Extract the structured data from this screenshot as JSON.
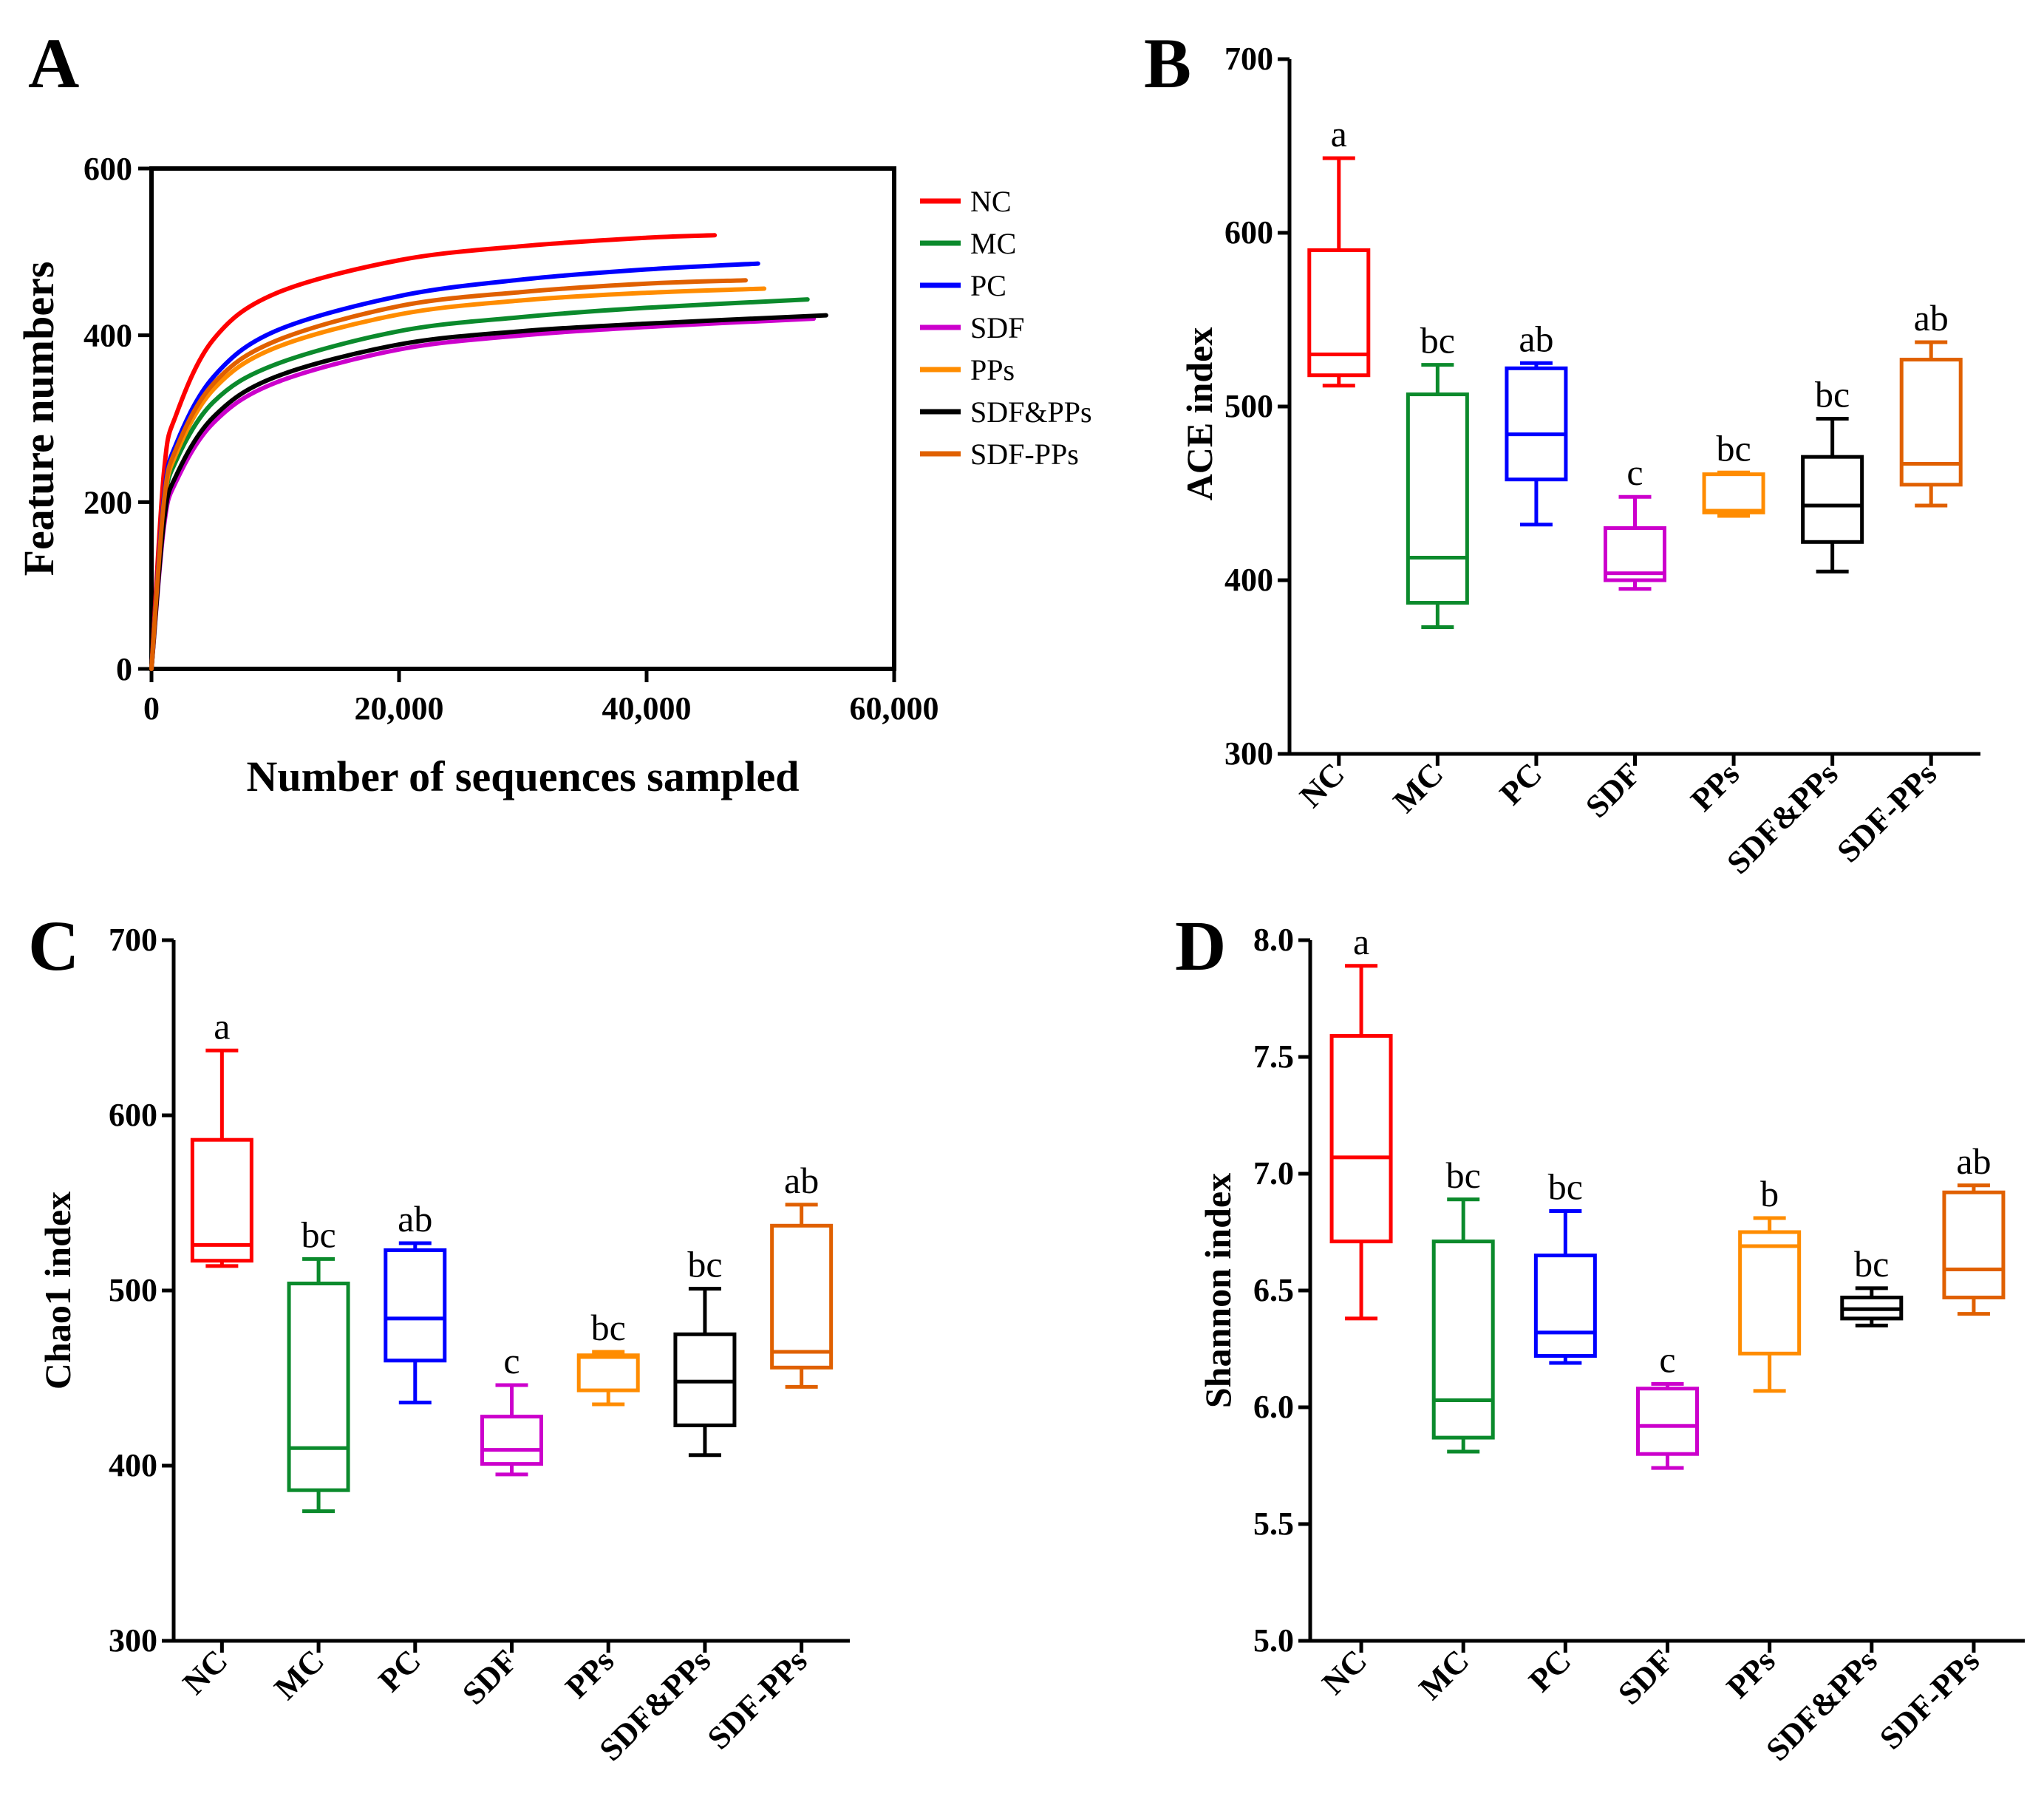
{
  "colors": {
    "NC": "#ff0000",
    "MC": "#0b8a2c",
    "PC": "#0000ff",
    "SDF": "#cc00cc",
    "PPs": "#ff8c00",
    "SDF&PPs": "#000000",
    "SDF-PPs": "#e06000"
  },
  "chart_data": [
    {
      "id": "A",
      "type": "line",
      "panel_label": "A",
      "xlabel": "Number of sequences sampled",
      "ylabel": "Feature numbers",
      "xlim": [
        0,
        60000
      ],
      "ylim": [
        0,
        600
      ],
      "xticks": [
        0,
        20000,
        40000,
        60000
      ],
      "xtick_labels": [
        "0",
        "20,000",
        "40,000",
        "60,000"
      ],
      "yticks": [
        0,
        200,
        400,
        600
      ],
      "ytick_labels": [
        "0",
        "200",
        "400",
        "600"
      ],
      "legend": [
        "NC",
        "MC",
        "PC",
        "SDF",
        "PPs",
        "SDF&PPs",
        "SDF-PPs"
      ],
      "series": [
        {
          "name": "NC",
          "x": [
            0,
            1000,
            2000,
            5000,
            10000,
            20000,
            30000,
            40000,
            45500
          ],
          "y": [
            0,
            235,
            305,
            395,
            450,
            490,
            507,
            517,
            520
          ]
        },
        {
          "name": "MC",
          "x": [
            0,
            1000,
            2000,
            5000,
            10000,
            20000,
            30000,
            40000,
            53000
          ],
          "y": [
            0,
            190,
            250,
            320,
            365,
            405,
            422,
            433,
            443
          ]
        },
        {
          "name": "PC",
          "x": [
            0,
            1000,
            2000,
            5000,
            10000,
            20000,
            30000,
            40000,
            49000
          ],
          "y": [
            0,
            205,
            270,
            350,
            405,
            447,
            467,
            479,
            486
          ]
        },
        {
          "name": "SDF",
          "x": [
            0,
            1000,
            2000,
            5000,
            10000,
            20000,
            30000,
            40000,
            53500
          ],
          "y": [
            0,
            170,
            225,
            295,
            343,
            383,
            400,
            410,
            420
          ]
        },
        {
          "name": "PPs",
          "x": [
            0,
            1000,
            2000,
            5000,
            10000,
            20000,
            30000,
            40000,
            49500
          ],
          "y": [
            0,
            195,
            258,
            335,
            385,
            425,
            442,
            451,
            456
          ]
        },
        {
          "name": "SDF&PPs",
          "x": [
            0,
            1000,
            2000,
            5000,
            10000,
            20000,
            30000,
            40000,
            54500
          ],
          "y": [
            0,
            176,
            232,
            302,
            350,
            389,
            405,
            414,
            424
          ]
        },
        {
          "name": "SDF-PPs",
          "x": [
            0,
            1000,
            2000,
            5000,
            10000,
            20000,
            30000,
            40000,
            48000
          ],
          "y": [
            0,
            200,
            264,
            342,
            393,
            435,
            452,
            462,
            466
          ]
        }
      ]
    },
    {
      "id": "B",
      "type": "box",
      "panel_label": "B",
      "ylabel": "ACE index",
      "ylim": [
        300,
        700
      ],
      "yticks": [
        300,
        400,
        500,
        600,
        700
      ],
      "ytick_labels": [
        "300",
        "400",
        "500",
        "600",
        "700"
      ],
      "categories": [
        "NC",
        "MC",
        "PC",
        "SDF",
        "PPs",
        "SDF&PPs",
        "SDF-PPs"
      ],
      "boxes": [
        {
          "min": 512,
          "q1": 518,
          "median": 530,
          "q3": 590,
          "max": 643,
          "label": "a"
        },
        {
          "min": 373,
          "q1": 387,
          "median": 413,
          "q3": 507,
          "max": 524,
          "label": "bc"
        },
        {
          "min": 432,
          "q1": 458,
          "median": 484,
          "q3": 522,
          "max": 525,
          "label": "ab"
        },
        {
          "min": 395,
          "q1": 400,
          "median": 404,
          "q3": 430,
          "max": 448,
          "label": "c"
        },
        {
          "min": 437,
          "q1": 439,
          "median": 440,
          "q3": 461,
          "max": 462,
          "label": "bc"
        },
        {
          "min": 405,
          "q1": 422,
          "median": 443,
          "q3": 471,
          "max": 493,
          "label": "bc"
        },
        {
          "min": 443,
          "q1": 455,
          "median": 467,
          "q3": 527,
          "max": 537,
          "label": "ab"
        }
      ]
    },
    {
      "id": "C",
      "type": "box",
      "panel_label": "C",
      "ylabel": "Chao1 index",
      "ylim": [
        300,
        700
      ],
      "yticks": [
        300,
        400,
        500,
        600,
        700
      ],
      "ytick_labels": [
        "300",
        "400",
        "500",
        "600",
        "700"
      ],
      "categories": [
        "NC",
        "MC",
        "PC",
        "SDF",
        "PPs",
        "SDF&PPs",
        "SDF-PPs"
      ],
      "boxes": [
        {
          "min": 514,
          "q1": 517,
          "median": 526,
          "q3": 586,
          "max": 637,
          "label": "a"
        },
        {
          "min": 374,
          "q1": 386,
          "median": 410,
          "q3": 504,
          "max": 518,
          "label": "bc"
        },
        {
          "min": 436,
          "q1": 460,
          "median": 484,
          "q3": 523,
          "max": 527,
          "label": "ab"
        },
        {
          "min": 395,
          "q1": 401,
          "median": 409,
          "q3": 428,
          "max": 446,
          "label": "c"
        },
        {
          "min": 435,
          "q1": 443,
          "median": 462,
          "q3": 463,
          "max": 465,
          "label": "bc"
        },
        {
          "min": 406,
          "q1": 423,
          "median": 448,
          "q3": 475,
          "max": 501,
          "label": "bc"
        },
        {
          "min": 445,
          "q1": 456,
          "median": 465,
          "q3": 537,
          "max": 549,
          "label": "ab"
        }
      ]
    },
    {
      "id": "D",
      "type": "box",
      "panel_label": "D",
      "ylabel": "Shannon index",
      "ylim": [
        5.0,
        8.0
      ],
      "yticks": [
        5.0,
        5.5,
        6.0,
        6.5,
        7.0,
        7.5,
        8.0
      ],
      "ytick_labels": [
        "5.0",
        "5.5",
        "6.0",
        "6.5",
        "7.0",
        "7.5",
        "8.0"
      ],
      "categories": [
        "NC",
        "MC",
        "PC",
        "SDF",
        "PPs",
        "SDF&PPs",
        "SDF-PPs"
      ],
      "boxes": [
        {
          "min": 6.38,
          "q1": 6.71,
          "median": 7.07,
          "q3": 7.59,
          "max": 7.89,
          "label": "a"
        },
        {
          "min": 5.81,
          "q1": 5.87,
          "median": 6.03,
          "q3": 6.71,
          "max": 6.89,
          "label": "bc"
        },
        {
          "min": 6.19,
          "q1": 6.22,
          "median": 6.32,
          "q3": 6.65,
          "max": 6.84,
          "label": "bc"
        },
        {
          "min": 5.74,
          "q1": 5.8,
          "median": 5.92,
          "q3": 6.08,
          "max": 6.1,
          "label": "c"
        },
        {
          "min": 6.07,
          "q1": 6.23,
          "median": 6.69,
          "q3": 6.75,
          "max": 6.81,
          "label": "b"
        },
        {
          "min": 6.35,
          "q1": 6.38,
          "median": 6.42,
          "q3": 6.47,
          "max": 6.51,
          "label": "bc"
        },
        {
          "min": 6.4,
          "q1": 6.47,
          "median": 6.59,
          "q3": 6.92,
          "max": 6.95,
          "label": "ab"
        }
      ]
    }
  ]
}
